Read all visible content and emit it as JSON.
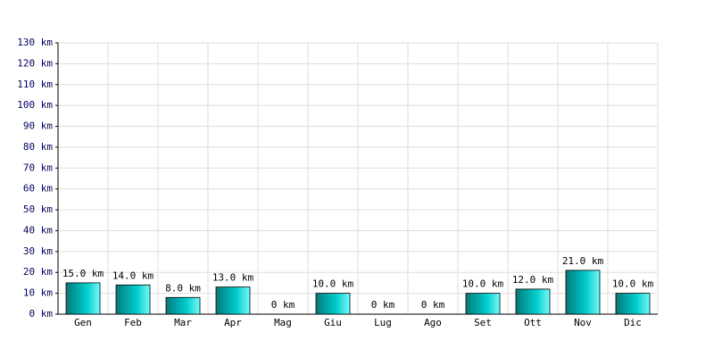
{
  "chart_data": {
    "type": "bar",
    "categories": [
      "Gen",
      "Feb",
      "Mar",
      "Apr",
      "Mag",
      "Giu",
      "Lug",
      "Ago",
      "Set",
      "Ott",
      "Nov",
      "Dic"
    ],
    "values": [
      15,
      14,
      8,
      13,
      0,
      10,
      0,
      0,
      10,
      12,
      21,
      10
    ],
    "value_labels": [
      "15.0 km",
      "14.0 km",
      "8.0 km",
      "13.0 km",
      "0 km",
      "10.0 km",
      "0 km",
      "0 km",
      "10.0 km",
      "12.0 km",
      "21.0 km",
      "10.0 km"
    ],
    "color": "#00cccc",
    "ylim": [
      0,
      130
    ],
    "yticks": [
      {
        "value": 0,
        "label": "0 km"
      },
      {
        "value": 10,
        "label": "10 km"
      },
      {
        "value": 20,
        "label": "20 km"
      },
      {
        "value": 30,
        "label": "30 km"
      },
      {
        "value": 40,
        "label": "40 km"
      },
      {
        "value": 50,
        "label": "50 km"
      },
      {
        "value": 60,
        "label": "60 km"
      },
      {
        "value": 70,
        "label": "70 km"
      },
      {
        "value": 80,
        "label": "80 km"
      },
      {
        "value": 90,
        "label": "90 km"
      },
      {
        "value": 100,
        "label": "100 km"
      },
      {
        "value": 110,
        "label": "110 km"
      },
      {
        "value": 120,
        "label": "120 km"
      },
      {
        "value": 130,
        "label": "130 km"
      }
    ],
    "grid": true
  }
}
